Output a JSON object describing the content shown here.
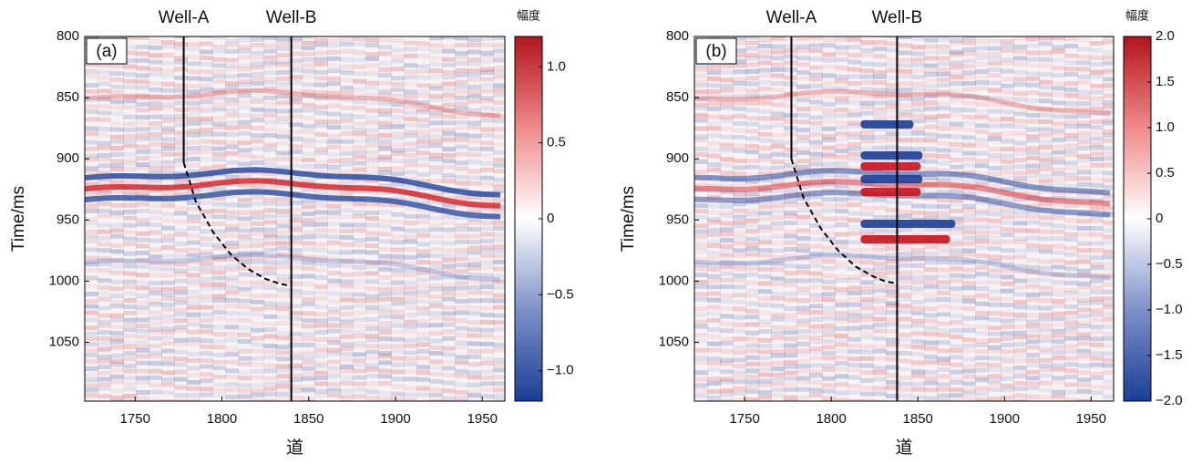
{
  "chart_data": [
    {
      "type": "seismic",
      "panel_label": "(a)",
      "xlabel": "道",
      "ylabel": "Time/ms",
      "xlim": [
        1721,
        1963
      ],
      "ylim": [
        800,
        1098
      ],
      "y_reversed": true,
      "xticks": [
        1750,
        1800,
        1850,
        1900,
        1950
      ],
      "yticks": [
        800,
        850,
        900,
        950,
        1000,
        1050
      ],
      "wells": [
        {
          "name": "Well-A",
          "x": 1778
        },
        {
          "name": "Well-B",
          "x": 1840
        }
      ],
      "well_path": {
        "x": [
          1778,
          1785,
          1795,
          1805,
          1815,
          1825,
          1833,
          1840
        ],
        "y": [
          903,
          935,
          960,
          978,
          990,
          998,
          1002,
          1004
        ]
      },
      "colorbar": {
        "label": "幅度",
        "lim": [
          -1.2,
          1.2
        ],
        "ticks": [
          {
            "value": -1.0,
            "label": "−1.0"
          },
          {
            "value": -0.5,
            "label": "−0.5"
          },
          0,
          0.5,
          {
            "value": 1.0,
            "label": "1.0"
          }
        ]
      }
    },
    {
      "type": "seismic",
      "panel_label": "(b)",
      "xlabel": "道",
      "ylabel": "Time/ms",
      "xlim": [
        1721,
        1963
      ],
      "ylim": [
        800,
        1098
      ],
      "y_reversed": true,
      "xticks": [
        1750,
        1800,
        1850,
        1900,
        1950
      ],
      "yticks": [
        800,
        850,
        900,
        950,
        1000,
        1050
      ],
      "wells": [
        {
          "name": "Well-A",
          "x": 1777
        },
        {
          "name": "Well-B",
          "x": 1838
        }
      ],
      "well_path": {
        "x": [
          1777,
          1784,
          1794,
          1804,
          1814,
          1824,
          1831,
          1838
        ],
        "y": [
          900,
          932,
          957,
          975,
          988,
          996,
          1000,
          1002
        ]
      },
      "colorbar": {
        "label": "幅度",
        "lim": [
          -2,
          2
        ],
        "ticks": [
          {
            "value": -2.0,
            "label": "−2.0"
          },
          {
            "value": -1.5,
            "label": "−1.5"
          },
          {
            "value": -1.0,
            "label": "−1.0"
          },
          {
            "value": -0.5,
            "label": "−0.5"
          },
          0,
          0.5,
          {
            "value": 1.0,
            "label": "1.0"
          },
          {
            "value": 1.5,
            "label": "1.5"
          },
          {
            "value": 2.0,
            "label": "2.0"
          }
        ]
      }
    }
  ]
}
